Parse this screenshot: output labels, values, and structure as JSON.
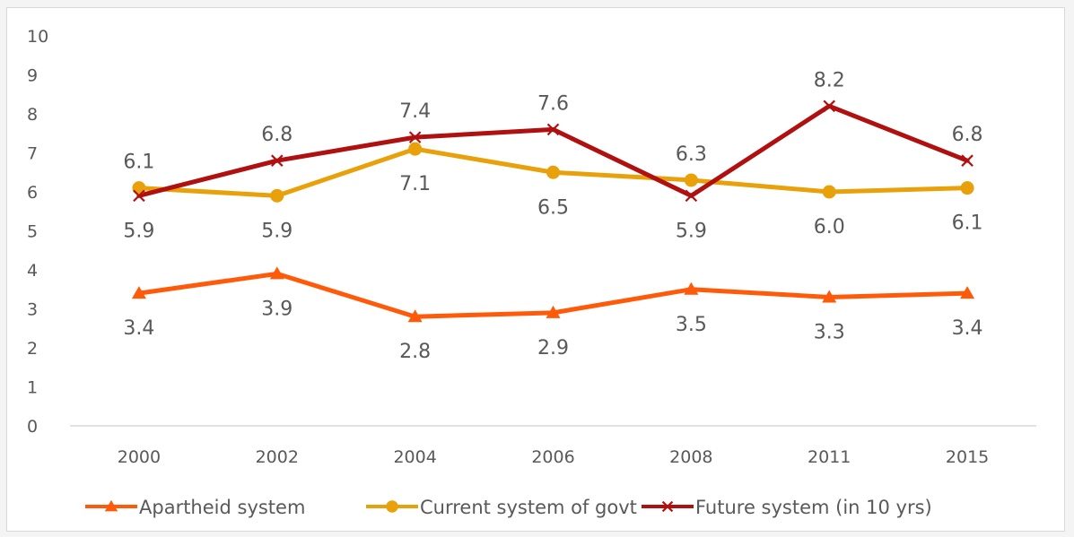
{
  "chart_data": {
    "type": "line",
    "categories": [
      "2000",
      "2002",
      "2004",
      "2006",
      "2008",
      "2011",
      "2015"
    ],
    "ylim": [
      0,
      10
    ],
    "yticks": [
      "0",
      "1",
      "2",
      "3",
      "4",
      "5",
      "6",
      "7",
      "8",
      "9",
      "10"
    ],
    "grid": false,
    "legend_position": "bottom",
    "series": [
      {
        "name": "Apartheid system",
        "values": [
          3.4,
          3.9,
          2.8,
          2.9,
          3.5,
          3.3,
          3.4
        ],
        "labels": [
          "3.4",
          "3.9",
          "2.8",
          "2.9",
          "3.5",
          "3.3",
          "3.4"
        ],
        "color": "#ff5a0a",
        "marker": "triangle"
      },
      {
        "name": "Current system of govt",
        "values": [
          6.1,
          5.9,
          7.1,
          6.5,
          6.3,
          6.0,
          6.1
        ],
        "labels": [
          "6.1",
          "5.9",
          "7.1",
          "6.5",
          "6.3",
          "6.0",
          "6.1"
        ],
        "color": "#e8a10a",
        "marker": "circle"
      },
      {
        "name": "Future system (in 10 yrs)",
        "values": [
          5.9,
          6.8,
          7.4,
          7.6,
          5.9,
          8.2,
          6.8
        ],
        "labels": [
          "5.9",
          "6.8",
          "7.4",
          "7.6",
          "5.9",
          "8.2",
          "6.8"
        ],
        "color": "#b01010",
        "marker": "x"
      }
    ]
  }
}
